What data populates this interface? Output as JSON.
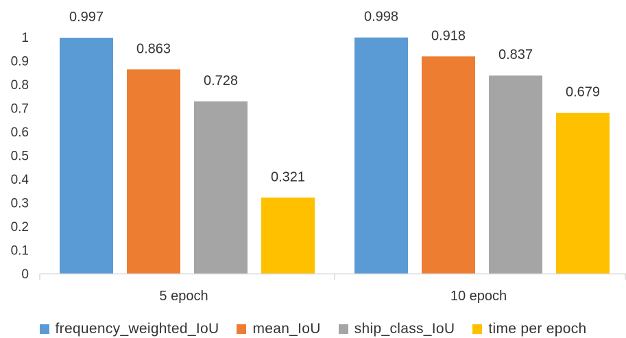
{
  "chart_data": {
    "type": "bar",
    "categories": [
      "5 epoch",
      "10 epoch"
    ],
    "series": [
      {
        "name": "frequency_weighted_IoU",
        "color": "#5B9BD5",
        "values": [
          0.997,
          0.998
        ]
      },
      {
        "name": "mean_IoU",
        "color": "#ED7D31",
        "values": [
          0.863,
          0.918
        ]
      },
      {
        "name": "ship_class_IoU",
        "color": "#A5A5A5",
        "values": [
          0.728,
          0.837
        ]
      },
      {
        "name": "time per epoch",
        "color": "#FFC000",
        "values": [
          0.321,
          0.679
        ]
      }
    ],
    "title": "",
    "xlabel": "",
    "ylabel": "",
    "ylim": [
      0,
      1
    ],
    "yticks": [
      "0",
      "0.1",
      "0.2",
      "0.3",
      "0.4",
      "0.5",
      "0.6",
      "0.7",
      "0.8",
      "0.9",
      "1"
    ],
    "grid": false,
    "legend_position": "bottom",
    "data_labels": true
  }
}
